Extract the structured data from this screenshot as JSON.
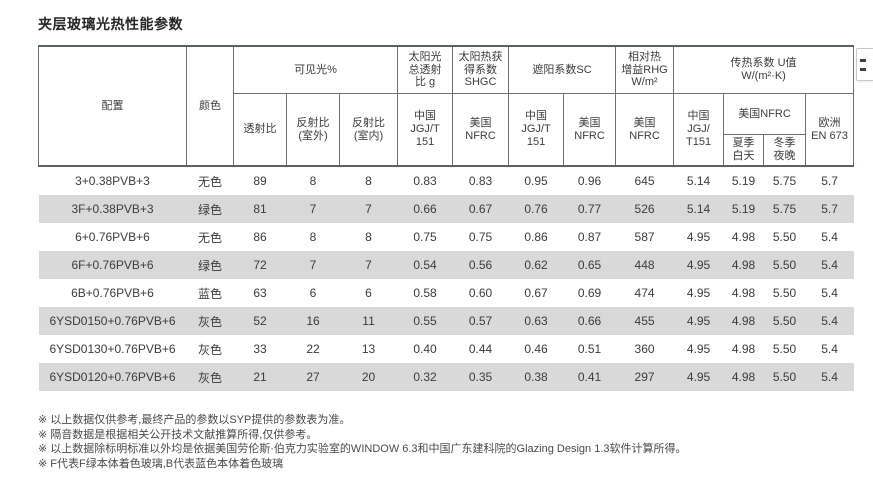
{
  "title": "夹层玻璃光热性能参数",
  "colors": {
    "table_border_dark": "#53646e",
    "table_border_grid": "#707070",
    "row_stripe": "#d9d9d9",
    "text": "#3c3c3c"
  },
  "table": {
    "headers": {
      "config": "配置",
      "color": "颜色",
      "visible_light": "可见光%",
      "transmittance": "透射比",
      "reflectance_outdoor": "反射比\n(室外)",
      "reflectance_indoor": "反射比\n(室内)",
      "solar_total_transmittance": "太阳光\n总透射\n比 g",
      "shgc": "太阳热获\n得系数\nSHGC",
      "shading_coefficient": "遮阳系数SC",
      "relative_heat_gain": "相对热\n增益RHG\nW/m²",
      "u_value": "传热系数 U值\nW/(m²·K)",
      "china_jgjt151": "中国\nJGJ/T\n151",
      "us_nfrc": "美国\nNFRC",
      "china_jgjt151_u": "中国\nJGJ/\nT151",
      "us_nfrc_u": "美国NFRC",
      "summer_day": "夏季\n白天",
      "winter_night": "冬季\n夜晚",
      "europe_en673": "欧洲\nEN 673"
    },
    "rows": [
      [
        "3+0.38PVB+3",
        "无色",
        "89",
        "8",
        "8",
        "0.83",
        "0.83",
        "0.95",
        "0.96",
        "645",
        "5.14",
        "5.19",
        "5.75",
        "5.7"
      ],
      [
        "3F+0.38PVB+3",
        "绿色",
        "81",
        "7",
        "7",
        "0.66",
        "0.67",
        "0.76",
        "0.77",
        "526",
        "5.14",
        "5.19",
        "5.75",
        "5.7"
      ],
      [
        "6+0.76PVB+6",
        "无色",
        "86",
        "8",
        "8",
        "0.75",
        "0.75",
        "0.86",
        "0.87",
        "587",
        "4.95",
        "4.98",
        "5.50",
        "5.4"
      ],
      [
        "6F+0.76PVB+6",
        "绿色",
        "72",
        "7",
        "7",
        "0.54",
        "0.56",
        "0.62",
        "0.65",
        "448",
        "4.95",
        "4.98",
        "5.50",
        "5.4"
      ],
      [
        "6B+0.76PVB+6",
        "蓝色",
        "63",
        "6",
        "6",
        "0.58",
        "0.60",
        "0.67",
        "0.69",
        "474",
        "4.95",
        "4.98",
        "5.50",
        "5.4"
      ],
      [
        "6YSD0150+0.76PVB+6",
        "灰色",
        "52",
        "16",
        "11",
        "0.55",
        "0.57",
        "0.63",
        "0.66",
        "455",
        "4.95",
        "4.98",
        "5.50",
        "5.4"
      ],
      [
        "6YSD0130+0.76PVB+6",
        "灰色",
        "33",
        "22",
        "13",
        "0.40",
        "0.44",
        "0.46",
        "0.51",
        "360",
        "4.95",
        "4.98",
        "5.50",
        "5.4"
      ],
      [
        "6YSD0120+0.76PVB+6",
        "灰色",
        "21",
        "27",
        "20",
        "0.32",
        "0.35",
        "0.38",
        "0.41",
        "297",
        "4.95",
        "4.98",
        "5.50",
        "5.4"
      ]
    ]
  },
  "footnotes": [
    "※ 以上数据仅供参考,最终产品的参数以SYP提供的参数表为准。",
    "※ 隔音数据是根据相关公开技术文献推算所得,仅供参考。",
    "※ 以上数据除标明标准以外均是依据美国劳伦斯·伯克力实验室的WINDOW 6.3和中国广东建科院的Glazing Design 1.3软件计算所得。",
    "※ F代表F绿本体着色玻璃,B代表蓝色本体着色玻璃"
  ]
}
